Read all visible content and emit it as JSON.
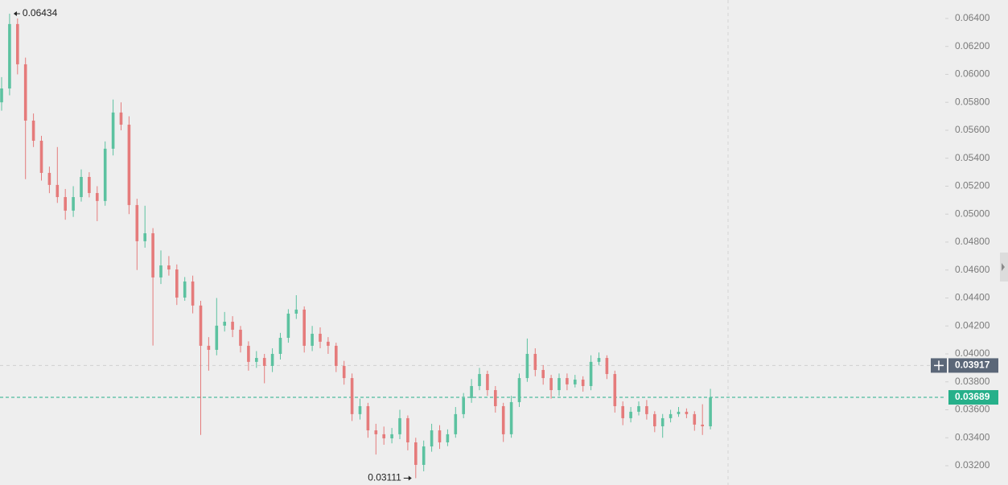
{
  "chart_data": {
    "type": "candlestick",
    "up_color": "#5cc2a0",
    "down_color": "#e57b7b",
    "ylim": [
      0.03062,
      0.06532
    ],
    "yticks": [
      {
        "value": 0.032,
        "label": "0.03200"
      },
      {
        "value": 0.034,
        "label": "0.03400"
      },
      {
        "value": 0.036,
        "label": "0.03600"
      },
      {
        "value": 0.038,
        "label": "0.03800"
      },
      {
        "value": 0.04,
        "label": "0.04000"
      },
      {
        "value": 0.042,
        "label": "0.04200"
      },
      {
        "value": 0.044,
        "label": "0.04400"
      },
      {
        "value": 0.046,
        "label": "0.04600"
      },
      {
        "value": 0.048,
        "label": "0.04800"
      },
      {
        "value": 0.05,
        "label": "0.05000"
      },
      {
        "value": 0.052,
        "label": "0.05200"
      },
      {
        "value": 0.054,
        "label": "0.05400"
      },
      {
        "value": 0.056,
        "label": "0.05600"
      },
      {
        "value": 0.058,
        "label": "0.05800"
      },
      {
        "value": 0.06,
        "label": "0.06000"
      },
      {
        "value": 0.062,
        "label": "0.06200"
      },
      {
        "value": 0.064,
        "label": "0.06400"
      }
    ],
    "high_marker": {
      "value": 0.06434,
      "label": "0.06434"
    },
    "low_marker": {
      "value": 0.03111,
      "label": "0.03111"
    },
    "crosshair": {
      "value": 0.03917,
      "label": "0.03917"
    },
    "last_price": {
      "value": 0.03689,
      "label": "0.03689",
      "color": "#26b08a"
    },
    "ohlc": [
      [
        0.058,
        0.0598,
        0.0574,
        0.05899
      ],
      [
        0.05899,
        0.06434,
        0.0585,
        0.0636
      ],
      [
        0.0636,
        0.064,
        0.06,
        0.06072
      ],
      [
        0.06072,
        0.0612,
        0.0525,
        0.05669
      ],
      [
        0.05669,
        0.0572,
        0.0548,
        0.05525
      ],
      [
        0.05525,
        0.0556,
        0.0524,
        0.05295
      ],
      [
        0.05295,
        0.0534,
        0.0515,
        0.05209
      ],
      [
        0.05209,
        0.0548,
        0.0508,
        0.05122
      ],
      [
        0.05122,
        0.0518,
        0.0496,
        0.05025
      ],
      [
        0.05025,
        0.052,
        0.0498,
        0.05122
      ],
      [
        0.05122,
        0.0532,
        0.0509,
        0.05266
      ],
      [
        0.05266,
        0.053,
        0.0512,
        0.05151
      ],
      [
        0.05151,
        0.052,
        0.0495,
        0.05094
      ],
      [
        0.05094,
        0.0552,
        0.0506,
        0.05468
      ],
      [
        0.05468,
        0.0582,
        0.0542,
        0.05727
      ],
      [
        0.05727,
        0.058,
        0.056,
        0.0564
      ],
      [
        0.0564,
        0.057,
        0.05,
        0.05065
      ],
      [
        0.05065,
        0.0511,
        0.046,
        0.04806
      ],
      [
        0.04806,
        0.0506,
        0.0476,
        0.04863
      ],
      [
        0.04863,
        0.049,
        0.0406,
        0.04547
      ],
      [
        0.04547,
        0.0474,
        0.045,
        0.04633
      ],
      [
        0.04633,
        0.047,
        0.0456,
        0.04604
      ],
      [
        0.04604,
        0.0464,
        0.0435,
        0.04403
      ],
      [
        0.04403,
        0.0455,
        0.0438,
        0.04518
      ],
      [
        0.04518,
        0.0456,
        0.0429,
        0.04346
      ],
      [
        0.04346,
        0.0438,
        0.0342,
        0.04058
      ],
      [
        0.04058,
        0.0412,
        0.0388,
        0.04029
      ],
      [
        0.04029,
        0.044,
        0.0399,
        0.04202
      ],
      [
        0.04202,
        0.043,
        0.0416,
        0.0423
      ],
      [
        0.0423,
        0.0427,
        0.0412,
        0.04173
      ],
      [
        0.04173,
        0.042,
        0.0401,
        0.04058
      ],
      [
        0.04058,
        0.0409,
        0.0388,
        0.03943
      ],
      [
        0.03943,
        0.0402,
        0.039,
        0.03971
      ],
      [
        0.03971,
        0.04,
        0.0379,
        0.03914
      ],
      [
        0.03914,
        0.0404,
        0.0387,
        0.04
      ],
      [
        0.04,
        0.0415,
        0.0396,
        0.04115
      ],
      [
        0.04115,
        0.0432,
        0.0408,
        0.04288
      ],
      [
        0.04288,
        0.0442,
        0.0425,
        0.04317
      ],
      [
        0.04317,
        0.0434,
        0.0401,
        0.04058
      ],
      [
        0.04058,
        0.042,
        0.0402,
        0.04144
      ],
      [
        0.04144,
        0.0419,
        0.0404,
        0.04087
      ],
      [
        0.04087,
        0.0412,
        0.04,
        0.04058
      ],
      [
        0.04058,
        0.0408,
        0.0387,
        0.03914
      ],
      [
        0.03914,
        0.0395,
        0.0378,
        0.03827
      ],
      [
        0.03827,
        0.0386,
        0.0352,
        0.03569
      ],
      [
        0.03569,
        0.0368,
        0.0353,
        0.03626
      ],
      [
        0.03626,
        0.0365,
        0.034,
        0.03453
      ],
      [
        0.03453,
        0.035,
        0.0328,
        0.03425
      ],
      [
        0.03425,
        0.0348,
        0.0335,
        0.03396
      ],
      [
        0.03396,
        0.0347,
        0.0336,
        0.03425
      ],
      [
        0.03425,
        0.036,
        0.0339,
        0.0354
      ],
      [
        0.0354,
        0.0356,
        0.0331,
        0.03367
      ],
      [
        0.03367,
        0.034,
        0.03111,
        0.03206
      ],
      [
        0.03206,
        0.0338,
        0.0316,
        0.03338
      ],
      [
        0.03338,
        0.035,
        0.033,
        0.03453
      ],
      [
        0.03453,
        0.0349,
        0.0332,
        0.03367
      ],
      [
        0.03367,
        0.0346,
        0.0334,
        0.03425
      ],
      [
        0.03425,
        0.0362,
        0.034,
        0.03569
      ],
      [
        0.03569,
        0.0372,
        0.0354,
        0.03684
      ],
      [
        0.03684,
        0.0382,
        0.0365,
        0.0377
      ],
      [
        0.0377,
        0.039,
        0.0374,
        0.03856
      ],
      [
        0.03856,
        0.0388,
        0.037,
        0.03741
      ],
      [
        0.03741,
        0.0377,
        0.0358,
        0.03626
      ],
      [
        0.03626,
        0.0365,
        0.0337,
        0.03425
      ],
      [
        0.03425,
        0.037,
        0.034,
        0.03655
      ],
      [
        0.03655,
        0.0386,
        0.0362,
        0.03827
      ],
      [
        0.03827,
        0.0411,
        0.038,
        0.04
      ],
      [
        0.04,
        0.0404,
        0.0384,
        0.03885
      ],
      [
        0.03885,
        0.0392,
        0.0378,
        0.03827
      ],
      [
        0.03827,
        0.0385,
        0.0368,
        0.03741
      ],
      [
        0.03741,
        0.0386,
        0.037,
        0.03827
      ],
      [
        0.03827,
        0.0386,
        0.0374,
        0.03782
      ],
      [
        0.03782,
        0.0385,
        0.0376,
        0.03816
      ],
      [
        0.03816,
        0.0384,
        0.0373,
        0.0377
      ],
      [
        0.0377,
        0.0399,
        0.0374,
        0.03943
      ],
      [
        0.03943,
        0.0401,
        0.0392,
        0.03971
      ],
      [
        0.03971,
        0.0399,
        0.0382,
        0.03856
      ],
      [
        0.03856,
        0.0388,
        0.0358,
        0.03626
      ],
      [
        0.03626,
        0.0366,
        0.0349,
        0.0354
      ],
      [
        0.0354,
        0.0362,
        0.0351,
        0.03586
      ],
      [
        0.03586,
        0.0366,
        0.0356,
        0.03626
      ],
      [
        0.03626,
        0.0367,
        0.0353,
        0.03569
      ],
      [
        0.03569,
        0.0359,
        0.0344,
        0.03482
      ],
      [
        0.03482,
        0.0357,
        0.034,
        0.0354
      ],
      [
        0.0354,
        0.036,
        0.0351,
        0.03569
      ],
      [
        0.03569,
        0.0362,
        0.0355,
        0.03586
      ],
      [
        0.03586,
        0.0361,
        0.0354,
        0.03569
      ],
      [
        0.03569,
        0.0359,
        0.0345,
        0.03494
      ],
      [
        0.03494,
        0.0364,
        0.0342,
        0.03482
      ],
      [
        0.03482,
        0.0375,
        0.0346,
        0.03689
      ]
    ]
  }
}
